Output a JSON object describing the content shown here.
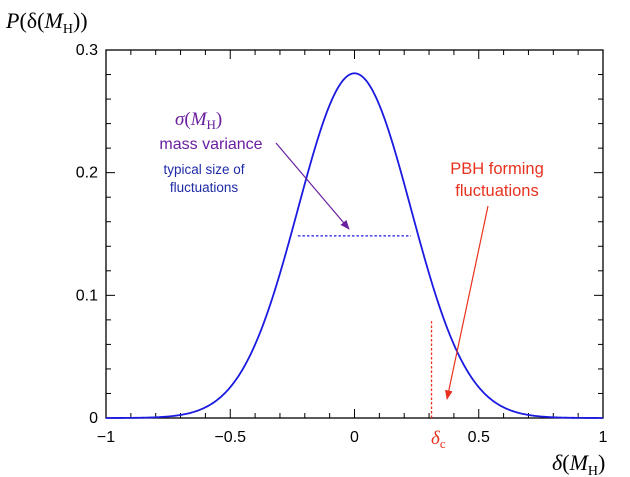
{
  "chart_data": {
    "type": "line",
    "ylabel": {
      "sym": "P",
      "open": "(δ(",
      "var": "M",
      "sub": "H",
      "close": "))"
    },
    "xlabel": {
      "sym": "δ",
      "open": "(",
      "var": "M",
      "sub": "H",
      "close": ")"
    },
    "xlim": [
      -1,
      1
    ],
    "ylim": [
      0,
      0.3
    ],
    "x_ticks": [
      {
        "value": -1,
        "label": "−1"
      },
      {
        "value": -0.5,
        "label": "−0.5"
      },
      {
        "value": 0,
        "label": "0"
      },
      {
        "value": 0.5,
        "label": "0.5"
      },
      {
        "value": 1,
        "label": "1"
      }
    ],
    "y_ticks": [
      {
        "value": 0,
        "label": "0"
      },
      {
        "value": 0.1,
        "label": "0.1"
      },
      {
        "value": 0.2,
        "label": "0.2"
      },
      {
        "value": 0.3,
        "label": "0.3"
      }
    ],
    "minor_x_step": 0.1,
    "minor_y_step": 0.02,
    "series": [
      {
        "distribution": "gaussian",
        "mean": 0,
        "peak": 0.281,
        "sigma": 0.2275,
        "color": "#1a1ae0"
      }
    ],
    "sigma_marker": {
      "x_from": -0.2275,
      "x_to": 0.2275,
      "y": 0.1485,
      "color": "#1a1ae0"
    },
    "delta_c_marker": {
      "x": 0.31,
      "y_top": 0.079,
      "color": "#e8321e"
    },
    "annotations": {
      "sigma_symbol": {
        "sym": "σ",
        "open": "(",
        "var": "M",
        "sub": "H",
        "close": ")",
        "color": "#6a1fa0"
      },
      "mass_variance": {
        "text": "mass variance",
        "color": "#6a1fa0"
      },
      "typical_size": {
        "lines": [
          "typical size of",
          "fluctuations"
        ],
        "color": "#1f2aa8"
      },
      "pbh": {
        "lines": [
          "PBH forming",
          "fluctuations"
        ],
        "color": "#e8321e"
      },
      "delta_c": {
        "sym": "δ",
        "sub": "c",
        "color": "#e8321e"
      }
    }
  }
}
